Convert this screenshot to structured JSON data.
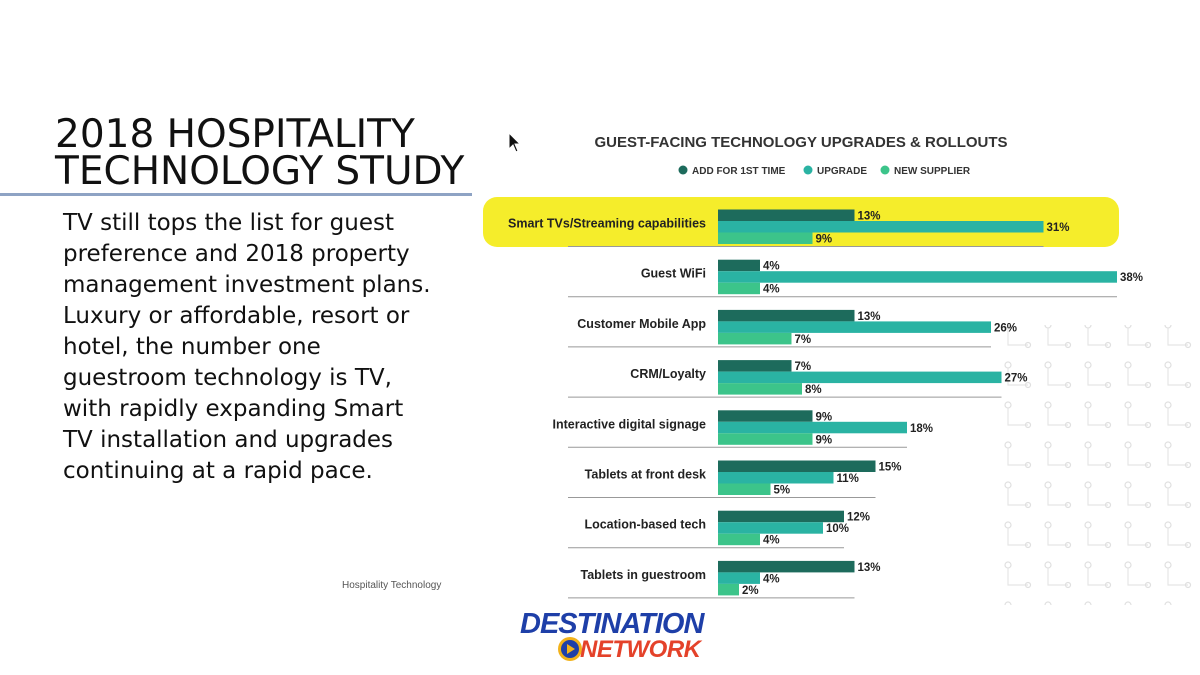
{
  "slide": {
    "title_line1": "2018 HOSPITALITY",
    "title_line2": "TECHNOLOGY STUDY",
    "body_lines": [
      "TV still tops the list for guest",
      "preference and 2018 property",
      "management investment plans.",
      "Luxury or affordable, resort or",
      "hotel, the number one",
      "guestroom technology is TV,",
      "with rapidly expanding Smart",
      "TV installation and upgrades",
      "continuing at a rapid pace."
    ],
    "source": "Hospitality Technology"
  },
  "logo": {
    "line1": "DESTINATION",
    "line2": "NETWORK"
  },
  "icons": {
    "cursor": "mouse-pointer-icon",
    "logo_play": "play-icon"
  },
  "colors": {
    "add_first_time": "#1d6b5c",
    "upgrade": "#2ab3a3",
    "new_supplier": "#3cc48a",
    "highlight": "#f5ed2b"
  },
  "chart_data": {
    "type": "bar",
    "orientation": "horizontal",
    "title": "GUEST-FACING TECHNOLOGY UPGRADES & ROLLOUTS",
    "categories": [
      "Smart TVs/Streaming capabilities",
      "Guest WiFi",
      "Customer Mobile App",
      "CRM/Loyalty",
      "Interactive digital signage",
      "Tablets at front desk",
      "Location-based tech",
      "Tablets in guestroom"
    ],
    "series": [
      {
        "name": "ADD FOR 1ST TIME",
        "values": [
          13,
          4,
          13,
          7,
          9,
          15,
          12,
          13
        ]
      },
      {
        "name": "UPGRADE",
        "values": [
          31,
          38,
          26,
          27,
          18,
          11,
          10,
          4
        ]
      },
      {
        "name": "NEW SUPPLIER",
        "values": [
          9,
          4,
          7,
          8,
          9,
          5,
          4,
          2
        ]
      }
    ],
    "value_suffix": "%",
    "highlighted_category": "Smart TVs/Streaming capabilities",
    "legend": "top-center",
    "grid": false
  }
}
